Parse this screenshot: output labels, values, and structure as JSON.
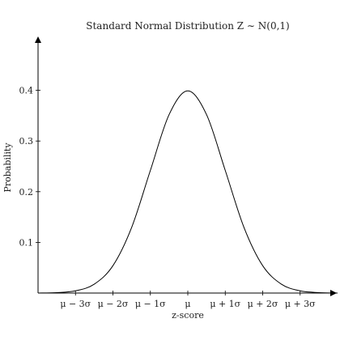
{
  "chart_data": {
    "type": "line",
    "title": "Standard Normal Distribution Z ∼ N(0,1)",
    "xlabel": "z-score",
    "ylabel": "Probability",
    "xlim": [
      -4,
      4
    ],
    "ylim": [
      0,
      0.5
    ],
    "grid": false,
    "legend": "none",
    "line_color": "#000000",
    "x_ticks": [
      {
        "value": -3,
        "label": "μ − 3σ"
      },
      {
        "value": -2,
        "label": "μ − 2σ"
      },
      {
        "value": -1,
        "label": "μ − 1σ"
      },
      {
        "value": 0,
        "label": "μ"
      },
      {
        "value": 1,
        "label": "μ + 1σ"
      },
      {
        "value": 2,
        "label": "μ + 2σ"
      },
      {
        "value": 3,
        "label": "μ + 3σ"
      }
    ],
    "y_ticks": [
      {
        "value": 0.1,
        "label": "0.1"
      },
      {
        "value": 0.2,
        "label": "0.2"
      },
      {
        "value": 0.3,
        "label": "0.3"
      },
      {
        "value": 0.4,
        "label": "0.4"
      }
    ],
    "series": [
      {
        "x": [
          -4.0,
          -3.5,
          -3.0,
          -2.5,
          -2.0,
          -1.5,
          -1.0,
          -0.5,
          0.0,
          0.5,
          1.0,
          1.5,
          2.0,
          2.5,
          3.0,
          3.5,
          4.0
        ],
        "y": [
          0.0001,
          0.0009,
          0.0044,
          0.0175,
          0.054,
          0.1295,
          0.242,
          0.3521,
          0.3989,
          0.3521,
          0.242,
          0.1295,
          0.054,
          0.0175,
          0.0044,
          0.0009,
          0.0001
        ]
      }
    ]
  }
}
